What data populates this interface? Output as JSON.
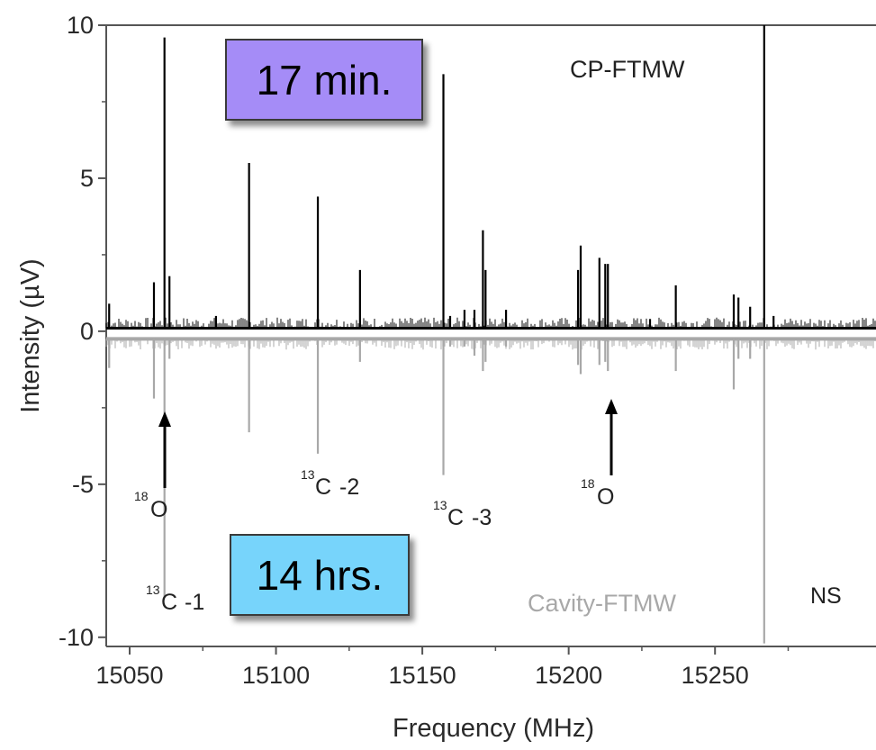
{
  "chart_data": {
    "type": "line",
    "xlabel": "Frequency (MHz)",
    "ylabel": "Intensity (µV)",
    "xlim": [
      15042,
      15305
    ],
    "ylim": [
      -10.3,
      10
    ],
    "xticks": [
      15050,
      15100,
      15150,
      15200,
      15250
    ],
    "yticks": [
      10,
      5,
      0,
      -5,
      -10
    ],
    "series": [
      {
        "name": "CP-FTMW",
        "color": "#000000",
        "baseline": 0.1,
        "peaks": [
          {
            "x": 15043,
            "y": 0.9
          },
          {
            "x": 15058.3,
            "y": 1.6
          },
          {
            "x": 15061.9,
            "y": 9.6
          },
          {
            "x": 15063.6,
            "y": 1.8
          },
          {
            "x": 15079.5,
            "y": 0.5
          },
          {
            "x": 15090.8,
            "y": 5.5
          },
          {
            "x": 15114.3,
            "y": 4.4
          },
          {
            "x": 15128.7,
            "y": 2.0
          },
          {
            "x": 15157.2,
            "y": 8.4
          },
          {
            "x": 15159.5,
            "y": 0.5
          },
          {
            "x": 15164.4,
            "y": 0.7
          },
          {
            "x": 15167.8,
            "y": 0.7
          },
          {
            "x": 15170.7,
            "y": 3.3
          },
          {
            "x": 15171.6,
            "y": 2.0
          },
          {
            "x": 15178.6,
            "y": 0.7
          },
          {
            "x": 15203.2,
            "y": 2.0
          },
          {
            "x": 15204.1,
            "y": 2.8
          },
          {
            "x": 15210.5,
            "y": 2.4
          },
          {
            "x": 15212.5,
            "y": 2.2
          },
          {
            "x": 15213.4,
            "y": 2.2
          },
          {
            "x": 15227.8,
            "y": 0.4
          },
          {
            "x": 15236.6,
            "y": 1.5
          },
          {
            "x": 15256.4,
            "y": 1.2
          },
          {
            "x": 15258.0,
            "y": 1.1
          },
          {
            "x": 15262.0,
            "y": 0.8
          },
          {
            "x": 15266.8,
            "y": 10.0
          },
          {
            "x": 15270.0,
            "y": 0.5
          }
        ]
      },
      {
        "name": "Cavity-FTMW",
        "color": "#a8a8a8",
        "baseline": -0.25,
        "peaks": [
          {
            "x": 15043,
            "y": -1.2
          },
          {
            "x": 15058.3,
            "y": -2.2
          },
          {
            "x": 15061.9,
            "y": -8.7
          },
          {
            "x": 15063.6,
            "y": -0.9
          },
          {
            "x": 15090.8,
            "y": -3.3
          },
          {
            "x": 15114.3,
            "y": -4.0
          },
          {
            "x": 15128.7,
            "y": -1.0
          },
          {
            "x": 15157.2,
            "y": -4.7
          },
          {
            "x": 15159.5,
            "y": -0.5
          },
          {
            "x": 15164.4,
            "y": -0.5
          },
          {
            "x": 15167.8,
            "y": -0.8
          },
          {
            "x": 15170.7,
            "y": -1.3
          },
          {
            "x": 15171.6,
            "y": -1.0
          },
          {
            "x": 15178.6,
            "y": -0.5
          },
          {
            "x": 15203.2,
            "y": -1.1
          },
          {
            "x": 15204.1,
            "y": -1.4
          },
          {
            "x": 15210.5,
            "y": -1.1
          },
          {
            "x": 15212.5,
            "y": -1.0
          },
          {
            "x": 15213.4,
            "y": -1.3
          },
          {
            "x": 15236.6,
            "y": -1.3
          },
          {
            "x": 15256.4,
            "y": -1.9
          },
          {
            "x": 15258.0,
            "y": -0.9
          },
          {
            "x": 15262.0,
            "y": -0.9
          },
          {
            "x": 15266.8,
            "y": -10.2
          }
        ]
      }
    ],
    "annotations": [
      {
        "text": "-1",
        "sup": "13",
        "base": "C",
        "x": 15043
      },
      {
        "text": "-2",
        "sup": "13",
        "base": "C",
        "x": 15114
      },
      {
        "text": "-3",
        "sup": "13",
        "base": "C",
        "x": 15157
      },
      {
        "sup": "18",
        "base": "O",
        "x": 15058
      },
      {
        "sup": "18",
        "base": "O",
        "x": 15204
      },
      {
        "text": "NS",
        "x": 15270
      }
    ],
    "grid": false,
    "legend": "none"
  },
  "labels": {
    "series_top": "CP-FTMW",
    "series_bottom": "Cavity-FTMW",
    "badge_top": "17 min.",
    "badge_bottom": "14 hrs.",
    "c13_sup": "13",
    "c13_base": "C",
    "c13_1": "-1",
    "c13_2": "-2",
    "c13_3": "-3",
    "o18_sup": "18",
    "o18_base": "O",
    "ns": "NS"
  },
  "colors": {
    "badge_top_bg": "#a58cf7",
    "badge_bottom_bg": "#77d4fb",
    "cp_trace": "#000000",
    "cavity_trace": "#a8a8a8"
  }
}
